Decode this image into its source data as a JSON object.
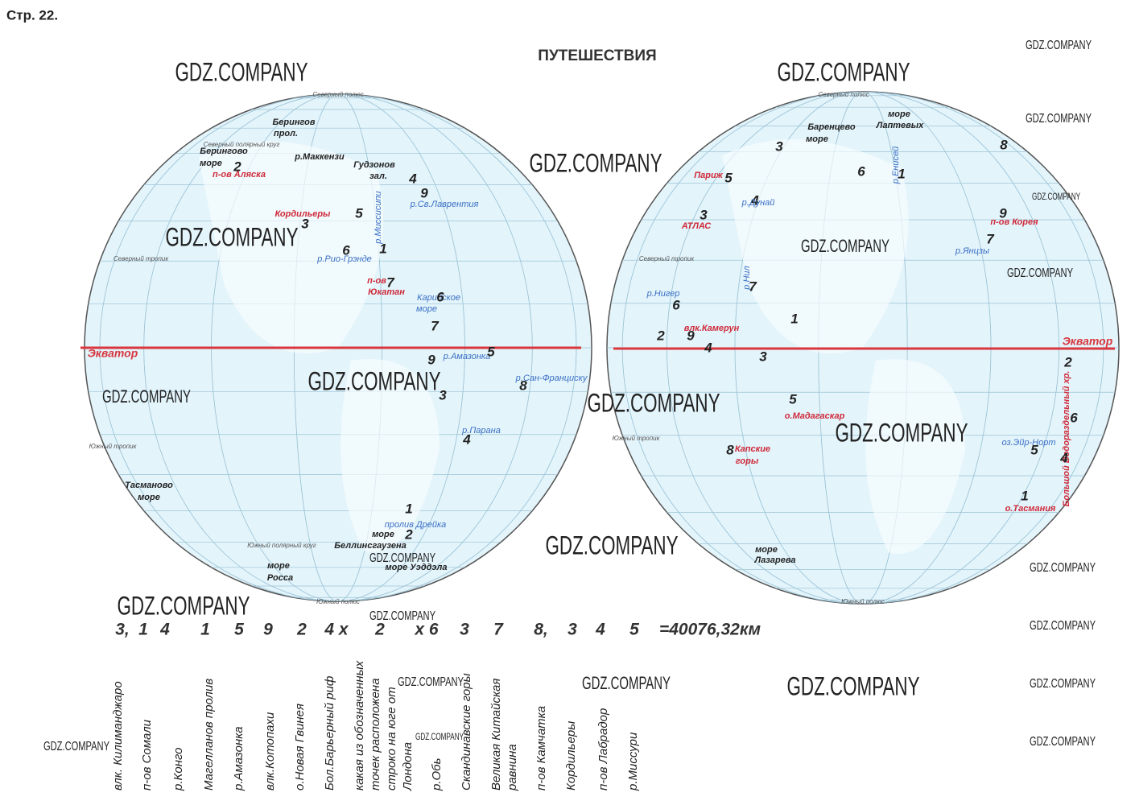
{
  "header": {
    "page": "Стр. 22.",
    "title": "ПУТЕШЕСТВИЯ"
  },
  "left_map": {
    "labels": [
      "Северный полюс",
      "Берингов",
      "прол.",
      "Берингово",
      "море",
      "2",
      "п-ов Аляска",
      "р.Маккензи",
      "Гудзонов",
      "зал.",
      "4",
      "9",
      "р.Св.Лаврентия",
      "Кордильеры",
      "5",
      "3",
      "р.Миссисипи",
      "6",
      "1",
      "р.Рио-Грэнде",
      "п-ов",
      "Юкатан",
      "7",
      "Карибское",
      "море",
      "6",
      "7",
      "Экватор",
      "9",
      "р.Амазонка",
      "5",
      "3",
      "р.Сан-Франциску",
      "8",
      "р.Парана",
      "4",
      "Тасманово",
      "море",
      "1",
      "пролив Дрейка",
      "2",
      "море",
      "Беллинсгаузена",
      "море Уэддэла",
      "море",
      "Росса",
      "Северный тропик",
      "Южный тропик",
      "Южный полярный круг",
      "Южный полюс",
      "Северный полярный круг"
    ]
  },
  "right_map": {
    "labels": [
      "Северный полюс",
      "море",
      "Лаптевых",
      "Баренцево",
      "море",
      "3",
      "8",
      "6",
      "1",
      "р.Енисей",
      "Париж",
      "5",
      "4",
      "р.Дунай",
      "3",
      "АТЛАС",
      "9",
      "п-ов Корея",
      "7",
      "р.Янцзы",
      "р.Нил",
      "7",
      "р.Нигер",
      "6",
      "1",
      "2",
      "9",
      "влк.Камерун",
      "4",
      "3",
      "Экватор",
      "2",
      "Большой Водораздельный хр.",
      "5",
      "о.Мадагаскар",
      "6",
      "оз.Эйр-Норт",
      "5",
      "4",
      "8",
      "Капские",
      "горы",
      "1",
      "о.Тасмания",
      "море",
      "Лазарева",
      "Северный тропик",
      "Южный тропик",
      "Южный полюс"
    ]
  },
  "formula": [
    "3,",
    "1",
    "4",
    "1",
    "5",
    "9",
    "2",
    "4 х",
    "2",
    "х 6",
    "3",
    "7",
    "8,",
    "3",
    "4",
    "5",
    "=40076,32км"
  ],
  "answers": [
    [
      "влк. Килиманджаро"
    ],
    [
      "п-ов Сомали"
    ],
    [
      "р.Конго"
    ],
    [
      "Магелланов пролив"
    ],
    [
      "р.Амазонка"
    ],
    [
      "влк.Котопахи"
    ],
    [
      "о.Новая Гвинея"
    ],
    [
      "Бол.Барьерный риф"
    ],
    [
      "какая из обозначенных",
      "точек расположена",
      "строко на юге от",
      "Лондона"
    ],
    [
      "р.Обь"
    ],
    [
      "Скандинавские горы"
    ],
    [
      "Великая Китайская",
      "равнина"
    ],
    [
      "п-ов Камчатка"
    ],
    [
      "Кордильеры"
    ],
    [
      "п-ов Лабрадор"
    ],
    [
      "р.Миссури"
    ]
  ],
  "watermarks": [
    "GDZ.COMPANY",
    "GDZ.COMPANY",
    "GDZ.COMPANY",
    "GDZ.COMPANY",
    "GDZ.COMPANY",
    "GDZ.COMPANY",
    "GDZ.COMPANY",
    "GDZ.COMPANY",
    "GDZ.COMPANY",
    "GDZ.COMPANY",
    "GDZ.COMPANY",
    "GDZ.COMPANY",
    "GDZ.COMPANY",
    "GDZ.COMPANY",
    "GDZ.COMPANY",
    "GDZ.COMPANY",
    "GDZ.COMPANY",
    "GDZ.COMPANY",
    "GDZ.COMPANY",
    "GDZ.COMPANY",
    "GDZ.COMPANY",
    "GDZ.COMPANY",
    "GDZ.COMPANY",
    "GDZ.COMPANY",
    "GDZ.COMPANY",
    "GDZ.COMPANY"
  ]
}
